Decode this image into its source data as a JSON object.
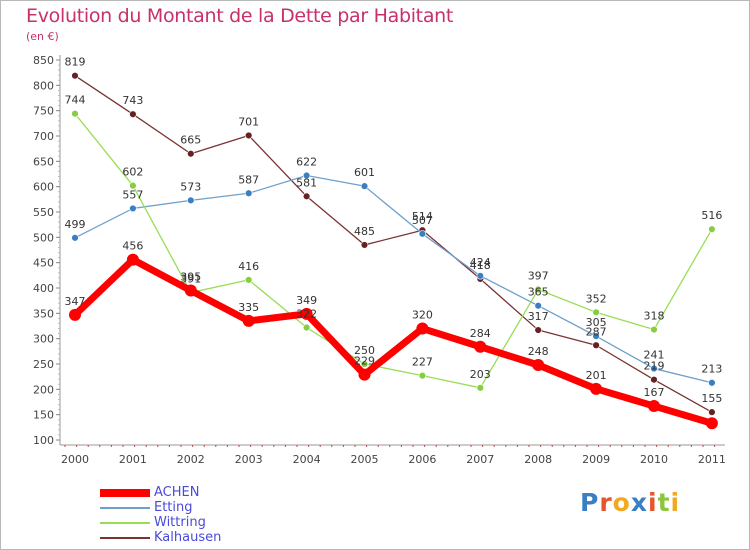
{
  "title": "Evolution du Montant de la Dette par Habitant",
  "subtitle": "(en €)",
  "logo_text": "Proxiti",
  "chart_data": {
    "type": "line",
    "title": "Evolution du Montant de la Dette par Habitant",
    "ylabel": "(en €)",
    "xlabel": "",
    "x": [
      "2000",
      "2001",
      "2002",
      "2003",
      "2004",
      "2005",
      "2006",
      "2007",
      "2008",
      "2009",
      "2010",
      "2011"
    ],
    "ylim": [
      100,
      850
    ],
    "yticks": [
      100,
      150,
      200,
      250,
      300,
      350,
      400,
      450,
      500,
      550,
      600,
      650,
      700,
      750,
      800,
      850
    ],
    "grid": false,
    "legend_position": "bottom-left",
    "series": [
      {
        "name": "ACHEN",
        "color": "#ff0000",
        "marker_color": "#ff0000",
        "values": [
          347,
          456,
          395,
          335,
          349,
          229,
          320,
          284,
          248,
          201,
          167,
          133
        ],
        "labels": [
          "347",
          "456",
          "395",
          "335",
          "349",
          "229",
          "320",
          "284",
          "248",
          "201",
          "167",
          ""
        ]
      },
      {
        "name": "Etting",
        "color": "#6fa0cc",
        "marker_color": "#3a7fc4",
        "values": [
          499,
          557,
          573,
          587,
          622,
          601,
          507,
          424,
          365,
          305,
          241,
          213
        ],
        "labels": [
          "499",
          "557",
          "573",
          "587",
          "622",
          "601",
          "507",
          "424",
          "365",
          "305",
          "241",
          "213"
        ]
      },
      {
        "name": "Wittring",
        "color": "#99dd55",
        "marker_color": "#88cc44",
        "values": [
          744,
          602,
          391,
          416,
          322,
          250,
          227,
          203,
          397,
          352,
          318,
          516
        ],
        "labels": [
          "744",
          "602",
          "391",
          "416",
          "322",
          "250",
          "227",
          "203",
          "397",
          "352",
          "318",
          "516"
        ]
      },
      {
        "name": "Kalhausen",
        "color": "#7a3333",
        "marker_color": "#662222",
        "values": [
          819,
          743,
          665,
          701,
          581,
          485,
          514,
          418,
          317,
          287,
          219,
          155
        ],
        "labels": [
          "819",
          "743",
          "665",
          "701",
          "581",
          "485",
          "514",
          "418",
          "317",
          "287",
          "219",
          "155"
        ]
      }
    ]
  }
}
